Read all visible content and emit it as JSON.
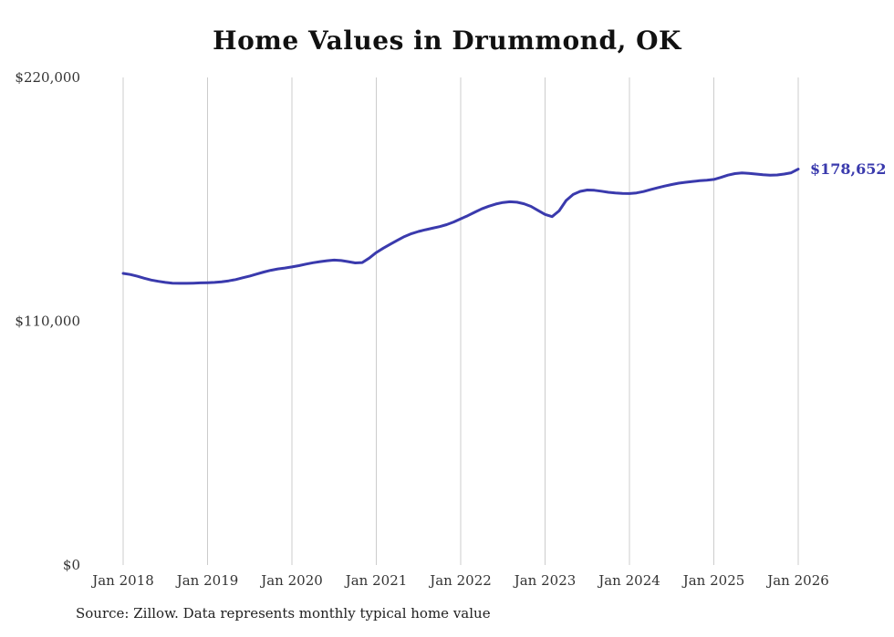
{
  "chart_data": {
    "type": "line",
    "title": "Home Values in Drummond, OK",
    "end_label": "$178,652",
    "source": "Source: Zillow. Data represents monthly typical home value",
    "line_color": "#3a3aad",
    "grid": "vertical-yearly",
    "legend": "none",
    "xlabel": "",
    "ylabel": "",
    "ylim": [
      0,
      220000
    ],
    "y_ticks": [
      0,
      110000,
      220000
    ],
    "y_tick_labels": [
      "$0",
      "$110,000",
      "$220,000"
    ],
    "x_frequency": "monthly",
    "x_tick_labels": [
      "Jan 2018",
      "Jan 2019",
      "Jan 2020",
      "Jan 2021",
      "Jan 2022",
      "Jan 2023",
      "Jan 2024",
      "Jan 2025",
      "Jan 2026"
    ],
    "series": [
      {
        "name": "Typical home value",
        "final_value": 178652,
        "values": [
          131600,
          131100,
          130300,
          129400,
          128600,
          128000,
          127500,
          127200,
          127100,
          127100,
          127200,
          127300,
          127400,
          127500,
          127800,
          128200,
          128800,
          129600,
          130400,
          131300,
          132200,
          133000,
          133600,
          134000,
          134500,
          135100,
          135800,
          136400,
          136900,
          137300,
          137600,
          137400,
          136900,
          136300,
          136500,
          138500,
          141000,
          143000,
          144800,
          146500,
          148200,
          149500,
          150500,
          151300,
          152000,
          152700,
          153600,
          154800,
          156200,
          157600,
          159200,
          160700,
          161900,
          162900,
          163600,
          163900,
          163700,
          163000,
          161800,
          160000,
          158200,
          157200,
          159800,
          164500,
          167200,
          168600,
          169200,
          169100,
          168700,
          168200,
          167900,
          167700,
          167600,
          167900,
          168500,
          169400,
          170200,
          171000,
          171700,
          172300,
          172700,
          173100,
          173400,
          173600,
          174000,
          174900,
          175900,
          176600,
          176900,
          176700,
          176400,
          176100,
          175900,
          176000,
          176400,
          177000,
          178652
        ]
      }
    ]
  }
}
